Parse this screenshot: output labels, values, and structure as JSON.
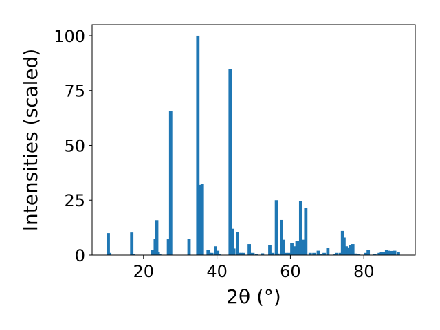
{
  "chart_data": {
    "type": "bar",
    "title": "",
    "xlabel": "2θ (°)",
    "ylabel": "Intensities (scaled)",
    "xlim": [
      6.0,
      94.0
    ],
    "ylim": [
      0,
      105
    ],
    "xticks": [
      20,
      40,
      60,
      80
    ],
    "yticks": [
      0,
      25,
      50,
      75,
      100
    ],
    "grid": false,
    "bar_width": 0.9,
    "color": "#1f77b4",
    "x": [
      10.4,
      10.8,
      16.8,
      17.2,
      22.4,
      23.2,
      23.6,
      24.0,
      24.4,
      26.8,
      27.4,
      32.4,
      34.8,
      35.2,
      35.6,
      36.0,
      37.6,
      38.0,
      38.6,
      39.6,
      40.2,
      40.6,
      43.6,
      44.2,
      44.6,
      45.6,
      46.0,
      46.6,
      47.2,
      48.8,
      49.2,
      49.8,
      50.8,
      52.4,
      54.4,
      55.2,
      56.2,
      56.6,
      57.6,
      58.0,
      58.8,
      59.6,
      60.4,
      61.2,
      61.8,
      62.2,
      62.8,
      63.6,
      64.2,
      65.4,
      66.4,
      67.6,
      68.2,
      69.2,
      70.2,
      72.2,
      72.6,
      73.6,
      74.2,
      74.6,
      75.2,
      75.8,
      76.4,
      77.0,
      77.8,
      78.6,
      80.6,
      81.2,
      83.0,
      84.2,
      84.8,
      85.4,
      86.2,
      86.8,
      87.6,
      88.4,
      89.4
    ],
    "values": [
      10.0,
      1.0,
      10.3,
      0.5,
      2.2,
      7.5,
      15.9,
      1.5,
      0.5,
      7.2,
      65.5,
      7.3,
      100.0,
      32.0,
      3.0,
      32.3,
      2.5,
      1.0,
      1.0,
      4.0,
      2.0,
      0.5,
      84.8,
      12.0,
      3.0,
      10.5,
      1.0,
      1.0,
      1.0,
      5.0,
      1.0,
      1.0,
      0.5,
      0.8,
      4.5,
      1.0,
      25.0,
      0.7,
      16.0,
      7.0,
      1.0,
      1.0,
      5.5,
      4.0,
      6.5,
      6.3,
      24.5,
      7.0,
      21.4,
      1.0,
      1.0,
      2.0,
      0.5,
      1.0,
      3.2,
      0.5,
      1.0,
      1.0,
      11.0,
      8.0,
      4.0,
      3.5,
      4.5,
      5.0,
      0.7,
      0.5,
      1.0,
      2.5,
      0.5,
      1.0,
      1.5,
      1.3,
      2.3,
      2.0,
      1.9,
      2.0,
      1.5
    ]
  }
}
